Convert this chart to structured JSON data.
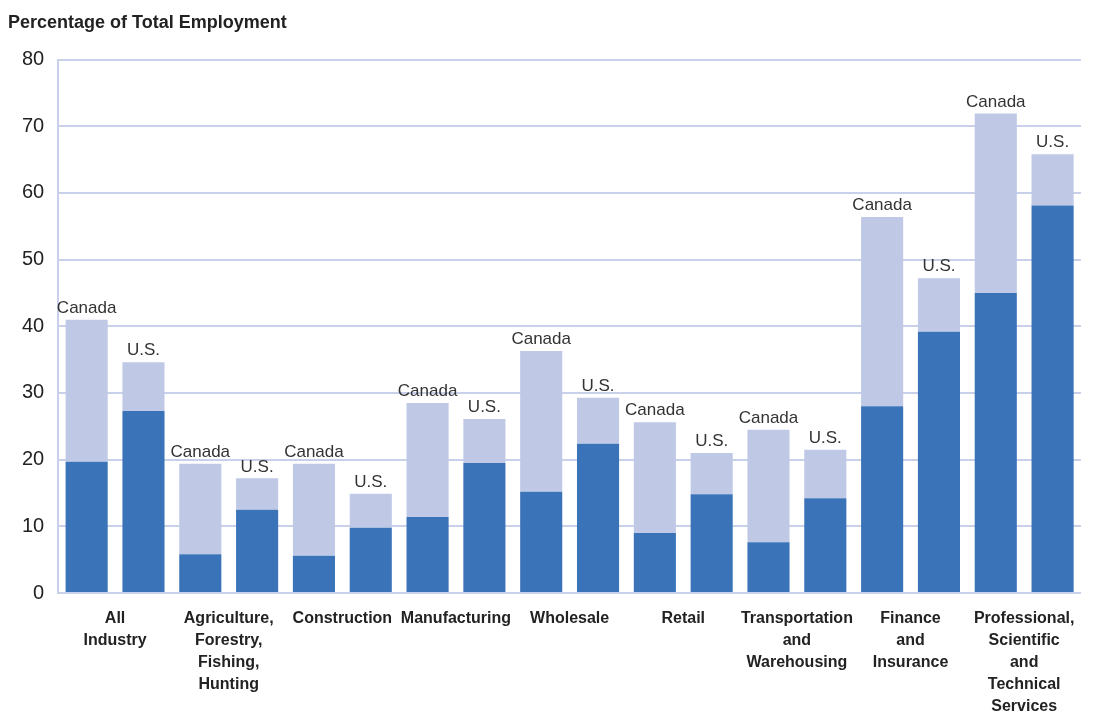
{
  "chart_data": {
    "type": "bar",
    "title": "Percentage of Total Employment",
    "stacked": true,
    "categories": [
      "All Industry",
      null,
      "Agriculture, Forestry, Fishing, Hunting",
      null,
      "Construction",
      null,
      "Manufacturing",
      null,
      "Wholesale",
      null,
      "Retail",
      null,
      "Transportation and Warehousing",
      null,
      "Finance and Insurance",
      null,
      "Professional, Scientific and Technical Services",
      null
    ],
    "series": [
      {
        "color": "#3b73b9",
        "values": [
          19.7,
          27.3,
          5.8,
          12.5,
          5.6,
          9.8,
          11.4,
          19.5,
          15.2,
          22.4,
          9.0,
          14.8,
          7.6,
          14.2,
          28.0,
          39.2,
          45.0,
          58.1
        ]
      },
      {
        "color": "#bfc9e6",
        "values": [
          21.3,
          7.3,
          13.6,
          4.7,
          13.8,
          5.1,
          17.1,
          6.6,
          21.1,
          6.9,
          16.6,
          6.2,
          16.9,
          7.3,
          28.4,
          8.0,
          26.9,
          7.7
        ]
      }
    ],
    "annotations": [
      "Canada",
      "U.S.",
      "Canada",
      "U.S.",
      "Canada",
      "U.S.",
      "Canada",
      "U.S.",
      "Canada",
      "U.S.",
      "Canada",
      "U.S.",
      "Canada",
      "U.S.",
      "Canada",
      "U.S.",
      "Canada",
      "U.S."
    ],
    "ylim": [
      0,
      80
    ],
    "yticks": [
      0,
      10,
      20,
      30,
      40,
      50,
      60,
      70,
      80
    ],
    "grid": "y",
    "legend": false
  }
}
